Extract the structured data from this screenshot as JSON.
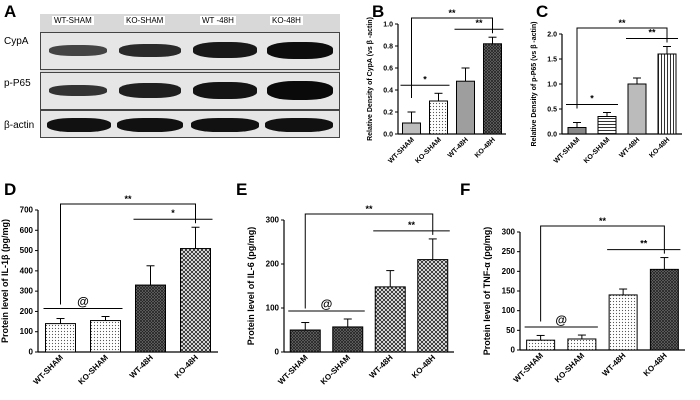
{
  "panels": {
    "A": "A",
    "B": "B",
    "C": "C",
    "D": "D",
    "E": "E",
    "F": "F"
  },
  "blot": {
    "lanes": [
      "WT-SHAM",
      "KO-SHAM",
      "WT -48H",
      "KO-48H"
    ],
    "rows": [
      "CypA",
      "p-P65",
      "β-actin"
    ]
  },
  "chart_data": [
    {
      "panel": "B",
      "type": "bar",
      "categories": [
        "WT-SHAM",
        "KO-SHAM",
        "WT-48H",
        "KO-48H"
      ],
      "values": [
        0.1,
        0.3,
        0.48,
        0.82
      ],
      "errors": [
        0.1,
        0.07,
        0.12,
        0.06
      ],
      "ylabel": "Relative Density of CypA (vs β -actin)",
      "ylim": [
        0,
        1.0
      ],
      "yticks": [
        0.0,
        0.2,
        0.4,
        0.6,
        0.8,
        1.0
      ],
      "tick_labels": [
        "0.0",
        "0.2",
        "0.4",
        "0.6",
        "0.8",
        "1.0"
      ],
      "annotations": [
        {
          "from": 0,
          "to": 1,
          "text": "*"
        },
        {
          "from": 2,
          "to": 3,
          "text": "**"
        },
        {
          "from": 0,
          "to": 3,
          "text": "**",
          "style": "bracket"
        }
      ]
    },
    {
      "panel": "C",
      "type": "bar",
      "categories": [
        "WT-SHAM",
        "KO-SHAM",
        "WT-48H",
        "KO-48H"
      ],
      "values": [
        0.13,
        0.35,
        1.0,
        1.6
      ],
      "errors": [
        0.1,
        0.08,
        0.12,
        0.15
      ],
      "ylabel": "Relative Density of p-P65 (vs β -actin)",
      "ylim": [
        0,
        2.0
      ],
      "yticks": [
        0.0,
        0.5,
        1.0,
        1.5,
        2.0
      ],
      "tick_labels": [
        "0.0",
        "0.5",
        "1.0",
        "1.5",
        "2.0"
      ],
      "annotations": [
        {
          "from": 0,
          "to": 1,
          "text": "*"
        },
        {
          "from": 2,
          "to": 3,
          "text": "**"
        },
        {
          "from": 0,
          "to": 3,
          "text": "**",
          "style": "bracket"
        }
      ]
    },
    {
      "panel": "D",
      "type": "bar",
      "categories": [
        "WT-SHAM",
        "KO-SHAM",
        "WT-48H",
        "KO-48H"
      ],
      "values": [
        140,
        155,
        330,
        510
      ],
      "errors": [
        25,
        20,
        95,
        105
      ],
      "ylabel": "Protein level of IL-1β (pg/mg)",
      "ylim": [
        0,
        700
      ],
      "yticks": [
        0,
        100,
        200,
        300,
        400,
        500,
        600,
        700
      ],
      "tick_labels": [
        "0",
        "100",
        "200",
        "300",
        "400",
        "500",
        "600",
        "700"
      ],
      "annotations": [
        {
          "from": 0,
          "to": 1,
          "text": "@"
        },
        {
          "from": 2,
          "to": 3,
          "text": "*"
        },
        {
          "from": 0,
          "to": 3,
          "text": "**",
          "style": "bracket"
        }
      ]
    },
    {
      "panel": "E",
      "type": "bar",
      "categories": [
        "WT-SHAM",
        "KO-SHAM",
        "WT-48H",
        "KO-48H"
      ],
      "values": [
        50,
        57,
        148,
        210
      ],
      "errors": [
        17,
        18,
        37,
        47
      ],
      "ylabel": "Protein level of IL-6 (pg/mg)",
      "ylim": [
        0,
        300
      ],
      "yticks": [
        0,
        100,
        200,
        300
      ],
      "tick_labels": [
        "0",
        "100",
        "200",
        "300"
      ],
      "annotations": [
        {
          "from": 0,
          "to": 1,
          "text": "@"
        },
        {
          "from": 2,
          "to": 3,
          "text": "**"
        },
        {
          "from": 0,
          "to": 3,
          "text": "**",
          "style": "bracket"
        }
      ]
    },
    {
      "panel": "F",
      "type": "bar",
      "categories": [
        "WT-SHAM",
        "KO-SHAM",
        "WT-48H",
        "KO-48H"
      ],
      "values": [
        25,
        28,
        140,
        205
      ],
      "errors": [
        12,
        10,
        15,
        30
      ],
      "ylabel": "Protein level of TNF-α (pg/mg)",
      "ylim": [
        0,
        300
      ],
      "yticks": [
        0,
        50,
        100,
        150,
        200,
        250,
        300
      ],
      "tick_labels": [
        "0",
        "50",
        "100",
        "150",
        "200",
        "250",
        "300"
      ],
      "annotations": [
        {
          "from": 0,
          "to": 1,
          "text": "@"
        },
        {
          "from": 2,
          "to": 3,
          "text": "**"
        },
        {
          "from": 0,
          "to": 3,
          "text": "**",
          "style": "bracket"
        }
      ]
    }
  ]
}
